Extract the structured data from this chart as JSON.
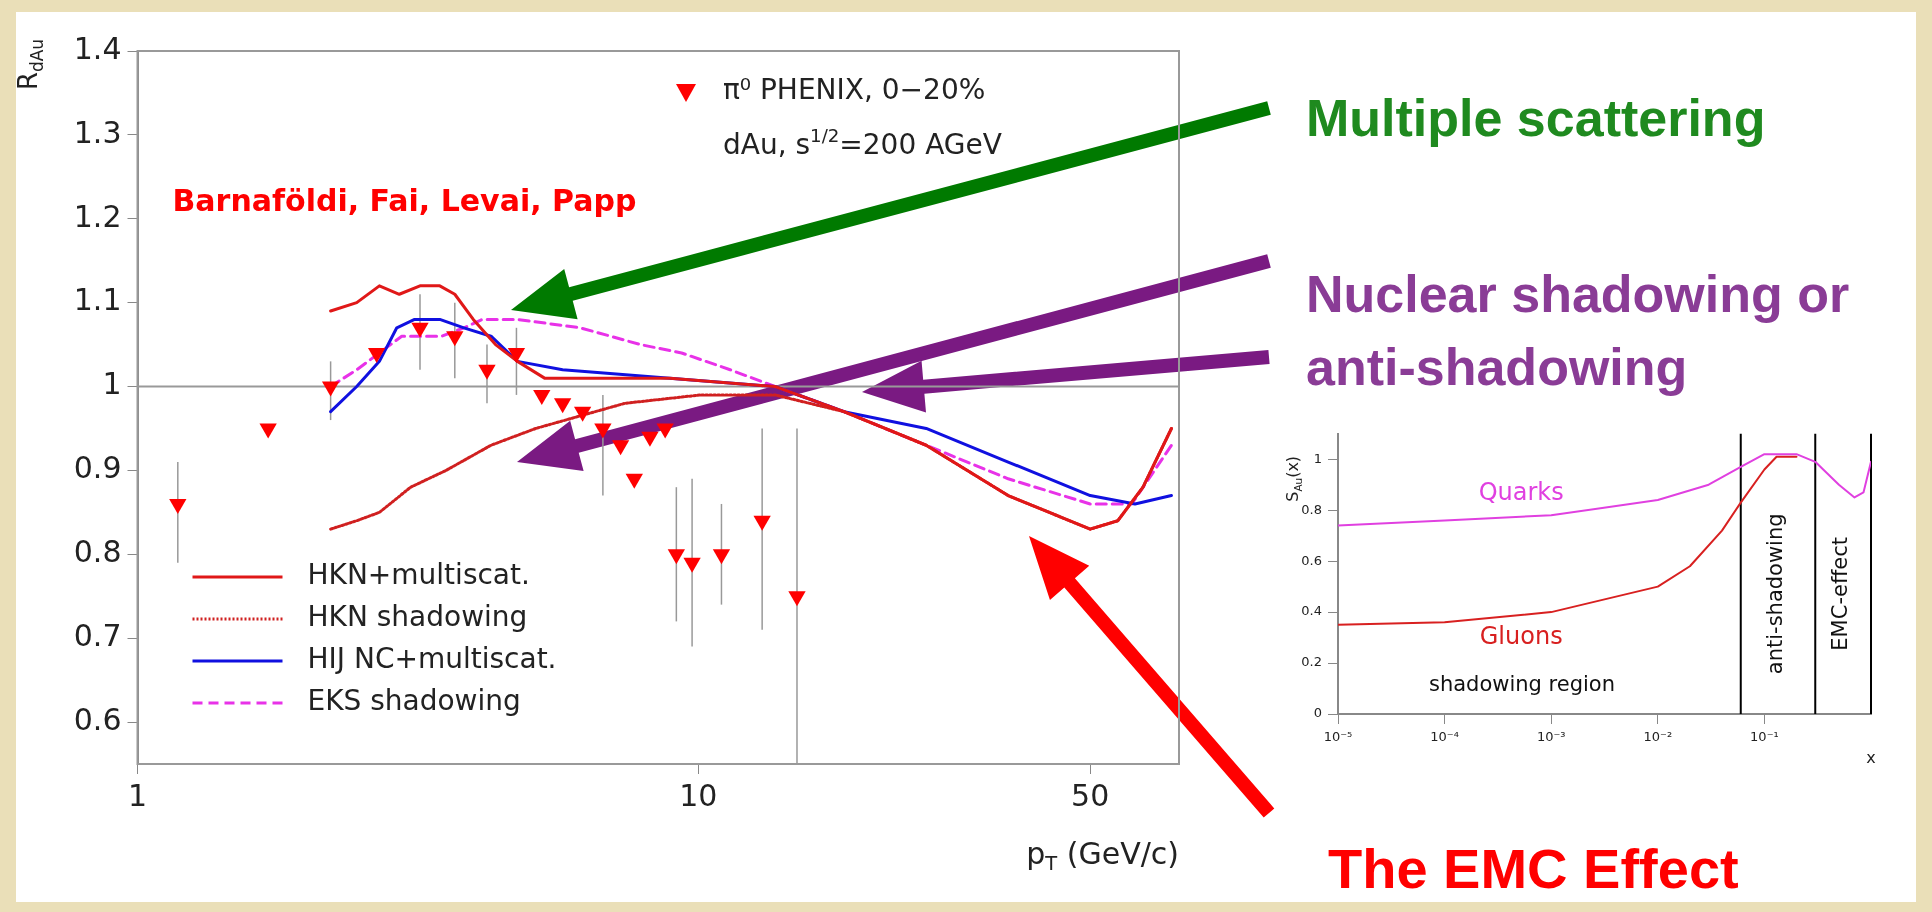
{
  "chart_data": [
    {
      "type": "line",
      "xlabel": "p$_{T}$ (GeV/c)",
      "ylabel": "R$_{dAu}$",
      "log": "x",
      "xlim": [
        1,
        72
      ],
      "ylim": [
        0.55,
        1.4
      ],
      "xticks": [
        1,
        10,
        50
      ],
      "yticks": [
        0.6,
        0.7,
        0.8,
        0.9,
        1,
        1.1,
        1.2,
        1.3,
        1.4
      ],
      "legend": "top left",
      "ref_lines": [
        {
          "axis": "y",
          "value": 1,
          "color": "#999999"
        }
      ],
      "annotations": [
        "Barnaföldi, Fai, Levai, Papp",
        "dAu, s$^{1/2}$=200 AGeV",
        "Multiple scattering",
        "Nuclear shadowing or anti-shadowing",
        "The EMC Effect"
      ],
      "series": [
        {
          "name": "π⁰ PHENIX, 0−20%",
          "type": "scatter",
          "marker": "triangle",
          "color": "#ff0000",
          "x": [
            1.18,
            1.71,
            2.21,
            2.67,
            3.19,
            3.68,
            4.2,
            4.74,
            5.26,
            5.73,
            6.22,
            6.76,
            7.27,
            7.69,
            8.2,
            8.73,
            9.14,
            9.75,
            11.0,
            13.0,
            15.0
          ],
          "values": [
            0.86,
            0.95,
            1.0,
            1.04,
            1.07,
            1.06,
            1.02,
            1.04,
            0.99,
            0.98,
            0.97,
            0.95,
            0.93,
            0.89,
            0.94,
            0.95,
            0.8,
            0.79,
            0.8,
            0.84,
            0.75
          ],
          "errors": [
            [
              0.79,
              0.91
            ],
            null,
            [
              0.96,
              1.03
            ],
            null,
            [
              1.02,
              1.11
            ],
            [
              1.01,
              1.1
            ],
            [
              0.98,
              1.05
            ],
            [
              0.99,
              1.07
            ],
            null,
            null,
            null,
            [
              0.87,
              0.99
            ],
            null,
            null,
            null,
            null,
            [
              0.72,
              0.88
            ],
            [
              0.69,
              0.89
            ],
            [
              0.74,
              0.86
            ],
            [
              0.71,
              0.95
            ],
            [
              0.55,
              0.95
            ]
          ]
        },
        {
          "name": "HKN+multiscat.",
          "type": "line",
          "line_style": "solid",
          "color": "#e01818",
          "x": [
            2.21,
            2.46,
            2.7,
            2.93,
            3.19,
            3.46,
            3.68,
            3.97,
            4.35,
            4.76,
            5.32,
            6.16,
            8.9,
            13.7,
            18.2,
            25.5,
            35.7,
            50,
            56,
            62.1,
            69.8
          ],
          "values": [
            1.09,
            1.1,
            1.12,
            1.11,
            1.12,
            1.12,
            1.11,
            1.08,
            1.05,
            1.03,
            1.01,
            1.01,
            1.01,
            1.0,
            0.97,
            0.93,
            0.87,
            0.83,
            0.84,
            0.88,
            0.95
          ]
        },
        {
          "name": "HKN shadowing",
          "type": "line",
          "line_style": "dotted",
          "color": "#d02020",
          "x": [
            2.21,
            2.46,
            2.7,
            3.07,
            3.55,
            4.27,
            5.13,
            7.4,
            10.1,
            13.7,
            18.2,
            25.5,
            35.7,
            50,
            56,
            62.1,
            69.8
          ],
          "values": [
            0.83,
            0.84,
            0.85,
            0.88,
            0.9,
            0.93,
            0.95,
            0.98,
            0.99,
            0.99,
            0.97,
            0.93,
            0.87,
            0.83,
            0.84,
            0.88,
            0.95
          ]
        },
        {
          "name": "HIJ NC+multiscat.",
          "type": "line",
          "line_style": "solid",
          "color": "#1010e0",
          "x": [
            2.21,
            2.46,
            2.7,
            2.9,
            3.12,
            3.46,
            3.82,
            4.27,
            4.76,
            5.73,
            8.9,
            13.7,
            18.2,
            25.5,
            35.7,
            50,
            60.1,
            69.8
          ],
          "values": [
            0.97,
            1.0,
            1.03,
            1.07,
            1.08,
            1.08,
            1.07,
            1.06,
            1.03,
            1.02,
            1.01,
            1.0,
            0.97,
            0.95,
            0.91,
            0.87,
            0.86,
            0.87
          ]
        },
        {
          "name": "EKS shadowing",
          "type": "line",
          "line_style": "dashed",
          "color": "#e832e8",
          "x": [
            2.21,
            2.46,
            2.7,
            2.96,
            3.19,
            3.49,
            3.82,
            4.12,
            4.76,
            6.16,
            7.89,
            9.34,
            11.4,
            13.7,
            18.2,
            25.5,
            35.7,
            50,
            59.3,
            69.8
          ],
          "values": [
            1.0,
            1.02,
            1.04,
            1.06,
            1.06,
            1.06,
            1.07,
            1.08,
            1.08,
            1.07,
            1.05,
            1.04,
            1.02,
            1.0,
            0.97,
            0.93,
            0.89,
            0.86,
            0.86,
            0.93
          ]
        }
      ]
    },
    {
      "type": "line",
      "xlabel": "x",
      "ylabel": "S$_{Au}$(x)",
      "log": "x",
      "xlim": [
        1e-05,
        1
      ],
      "ylim": [
        0,
        1.1
      ],
      "xticks": [
        {
          "value": 1e-05,
          "label": "10⁻⁵"
        },
        {
          "value": 0.0001,
          "label": "10⁻⁴"
        },
        {
          "value": 0.001,
          "label": "10⁻³"
        },
        {
          "value": 0.01,
          "label": "10⁻²"
        },
        {
          "value": 0.1,
          "label": "10⁻¹"
        }
      ],
      "yticks": [
        0,
        0.2,
        0.4,
        0.6,
        0.8,
        1
      ],
      "ref_lines": [
        {
          "axis": "x",
          "value": 0.06,
          "color": "#000000"
        },
        {
          "axis": "x",
          "value": 0.3,
          "color": "#000000"
        },
        {
          "axis": "x",
          "value": 1,
          "color": "#000000"
        }
      ],
      "annotations": [
        "shadowing region",
        "anti-shadowing",
        "EMC-effect"
      ],
      "series": [
        {
          "name": "Quarks",
          "color": "#e040e0",
          "x": [
            1e-05,
            0.0001,
            0.001,
            0.01,
            0.03,
            0.06,
            0.1,
            0.2,
            0.3,
            0.5,
            0.7,
            0.85,
            1
          ],
          "values": [
            0.74,
            0.76,
            0.78,
            0.84,
            0.9,
            0.97,
            1.02,
            1.02,
            0.99,
            0.9,
            0.85,
            0.87,
            0.99
          ]
        },
        {
          "name": "Gluons",
          "color": "#d82020",
          "x": [
            1e-05,
            0.0001,
            0.001,
            0.01,
            0.02,
            0.04,
            0.06,
            0.1,
            0.13,
            0.2
          ],
          "values": [
            0.35,
            0.36,
            0.4,
            0.5,
            0.58,
            0.72,
            0.83,
            0.96,
            1.01,
            1.01
          ]
        }
      ]
    }
  ]
}
